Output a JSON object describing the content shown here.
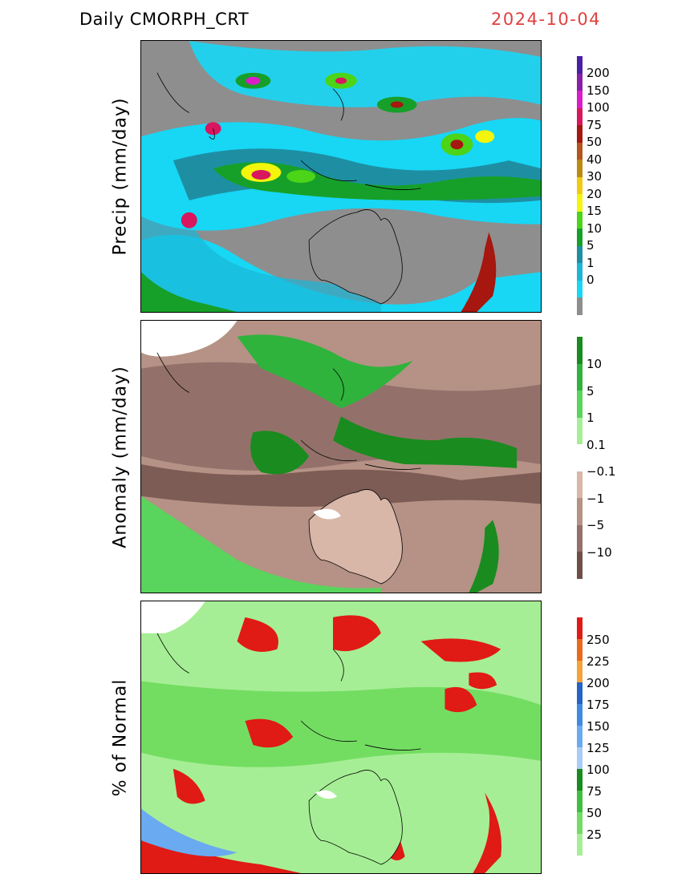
{
  "header": {
    "title": "Daily  CMORPH_CRT",
    "date": "2024-10-04"
  },
  "panels": [
    {
      "ylabel": "Precip (mm/day)",
      "colorbar": {
        "labels": [
          "200",
          "150",
          "100",
          "75",
          "50",
          "40",
          "30",
          "20",
          "15",
          "10",
          "5",
          "1",
          "0"
        ],
        "colors": [
          "#4b1ea3",
          "#8a1fa6",
          "#d81dc9",
          "#d8175e",
          "#a5170f",
          "#b3551c",
          "#bd8a10",
          "#f2cb10",
          "#f3f50c",
          "#4bd418",
          "#16a029",
          "#1e8fa3",
          "#1cb6d7",
          "#17d7f5",
          "#8e8e8e"
        ]
      }
    },
    {
      "ylabel": "Anomaly (mm/day)",
      "colorbar": {
        "labels": [
          "10",
          "5",
          "1",
          "0.1",
          "−0.1",
          "−1",
          "−5",
          "−10"
        ],
        "colors": [
          "#1a8b1f",
          "#2fb33c",
          "#59d45c",
          "#a6ee95",
          "#ffffff",
          "#d8b6a8",
          "#b59285",
          "#93716a",
          "#6e4f48"
        ]
      }
    },
    {
      "ylabel": "% of Normal",
      "colorbar": {
        "labels": [
          "250",
          "225",
          "200",
          "175",
          "150",
          "125",
          "100",
          "75",
          "50",
          "25"
        ],
        "colors": [
          "#e01a15",
          "#e86a1a",
          "#f4a23a",
          "#2364c7",
          "#3f8be0",
          "#6aaaf0",
          "#a9cbf5",
          "#1a8b1f",
          "#3fbf3f",
          "#73dd62",
          "#a6ee95"
        ]
      }
    }
  ]
}
